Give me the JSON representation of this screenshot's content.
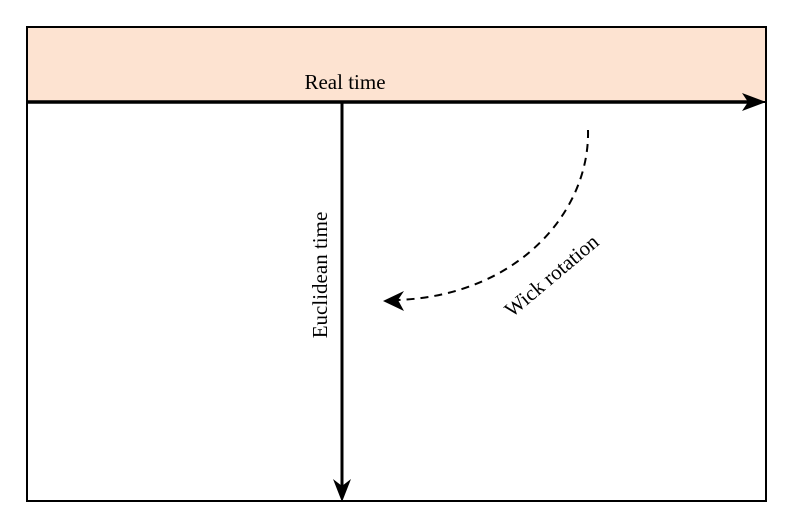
{
  "diagram": {
    "real_time_label": "Real time",
    "euclidean_time_label": "Euclidean time",
    "wick_rotation_label": "Wick rotation"
  },
  "colors": {
    "band_fill": "#fde3d1",
    "stroke": "#000000",
    "background": "#ffffff"
  }
}
